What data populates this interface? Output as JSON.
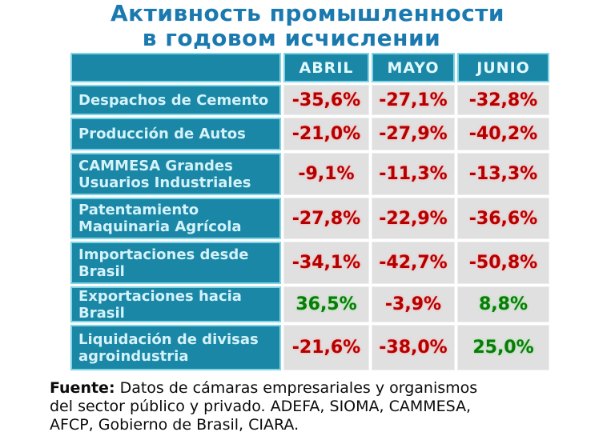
{
  "title": {
    "line1": "Активность промышленности",
    "line2": "в годовом исчислении"
  },
  "table": {
    "columns": [
      "ABRIL",
      "MAYO",
      "JUNIO"
    ],
    "rows": [
      {
        "label": "Despachos de Cemento",
        "values": [
          "-35,6%",
          "-27,1%",
          "-32,8%"
        ]
      },
      {
        "label": "Producción de Autos",
        "values": [
          "-21,0%",
          "-27,9%",
          "-40,2%"
        ]
      },
      {
        "label": "CAMMESA Grandes Usuarios Industriales",
        "values": [
          "-9,1%",
          "-11,3%",
          "-13,3%"
        ]
      },
      {
        "label": "Patentamiento Maquinaria Agrícola",
        "values": [
          "-27,8%",
          "-22,9%",
          "-36,6%"
        ]
      },
      {
        "label": "Importaciones desde Brasil",
        "values": [
          "-34,1%",
          "-42,7%",
          "-50,8%"
        ]
      },
      {
        "label": "Exportaciones hacia Brasil",
        "values": [
          "36,5%",
          "-3,9%",
          "8,8%"
        ]
      },
      {
        "label": "Liquidación de divisas agroindustria",
        "values": [
          "-21,6%",
          "-38,0%",
          "25,0%"
        ]
      }
    ]
  },
  "footer": {
    "label": "Fuente:",
    "line1": " Datos de cámaras empresariales y organismos",
    "line2": "del sector público y privado. ADEFA, SIOMA, CAMMESA,",
    "line3": "AFCP, Gobierno de Brasil, CIARA."
  },
  "colors": {
    "title_blue": "#1a79ae",
    "cell_teal": "#1a87a6",
    "teal_border": "#7fd4e5",
    "value_bg_gray": "#e0e0e0",
    "negative_red": "#b40000",
    "positive_green": "#0a7a0a"
  },
  "chart_data": {
    "type": "table",
    "title": "Активность промышленности в годовом исчислении",
    "columns": [
      "ABRIL",
      "MAYO",
      "JUNIO"
    ],
    "rows": [
      {
        "label": "Despachos de Cemento",
        "values_pct": [
          -35.6,
          -27.1,
          -32.8
        ]
      },
      {
        "label": "Producción de Autos",
        "values_pct": [
          -21.0,
          -27.9,
          -40.2
        ]
      },
      {
        "label": "CAMMESA Grandes Usuarios Industriales",
        "values_pct": [
          -9.1,
          -11.3,
          -13.3
        ]
      },
      {
        "label": "Patentamiento Maquinaria Agrícola",
        "values_pct": [
          -27.8,
          -22.9,
          -36.6
        ]
      },
      {
        "label": "Importaciones desde Brasil",
        "values_pct": [
          -34.1,
          -42.7,
          -50.8
        ]
      },
      {
        "label": "Exportaciones hacia Brasil",
        "values_pct": [
          36.5,
          -3.9,
          8.8
        ]
      },
      {
        "label": "Liquidación de divisas agroindustria",
        "values_pct": [
          -21.6,
          -38.0,
          25.0
        ]
      }
    ],
    "value_color_rule": "negative=red, positive=green",
    "source": "Fuente: Datos de cámaras empresariales y organismos del sector público y privado. ADEFA, SIOMA, CAMMESA, AFCP, Gobierno de Brasil, CIARA."
  }
}
